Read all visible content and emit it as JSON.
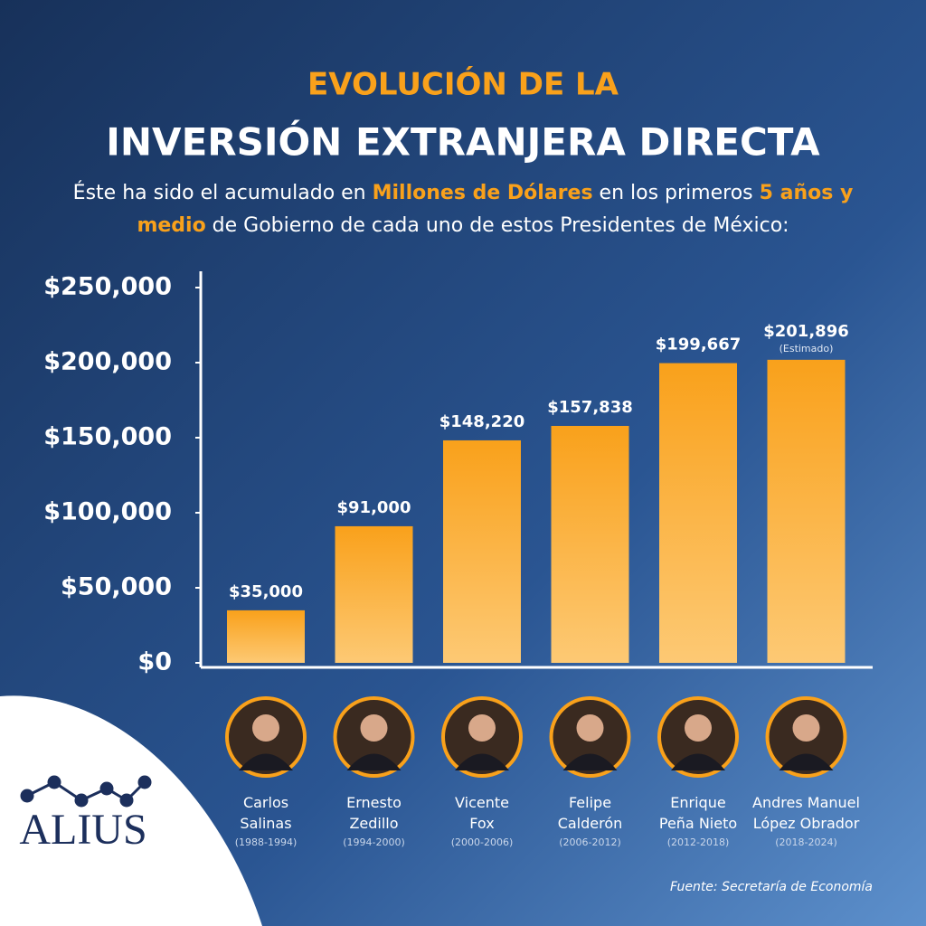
{
  "chart_data": {
    "type": "bar",
    "title": "EVOLUCIÓN DE LA",
    "title_line2": "INVERSIÓN EXTRANJERA DIRECTA",
    "subtitle_parts": [
      "Éste ha sido el acumulado en ",
      "Millones de Dólares",
      " en los primeros ",
      "5 años y medio",
      " de Gobierno de cada uno de estos Presidentes de México:"
    ],
    "categories": [
      "Carlos\nSalinas",
      "Ernesto\nZedillo",
      "Vicente\nFox",
      "Felipe\nCalderón",
      "Enrique\nPeña Nieto",
      "Andres Manuel\nLópez Obrador"
    ],
    "terms": [
      "(1988-1994)",
      "(1994-2000)",
      "(2000-2006)",
      "(2006-2012)",
      "(2012-2018)",
      "(2018-2024)"
    ],
    "values": [
      35000,
      91000,
      148220,
      157838,
      199667,
      201896
    ],
    "value_labels": [
      "$35,000",
      "$91,000",
      "$148,220",
      "$157,838",
      "$199,667",
      "$201,896"
    ],
    "annotation": "(Estimado)",
    "color": "#f9a11b",
    "ylim": [
      0,
      250000
    ],
    "yticks": [
      {
        "value": 0,
        "label": "$0"
      },
      {
        "value": 50000,
        "label": "$50,000"
      },
      {
        "value": 100000,
        "label": "$100,000"
      },
      {
        "value": 150000,
        "label": "$150,000"
      },
      {
        "value": 200000,
        "label": "$200,000"
      },
      {
        "value": 250000,
        "label": "$250,000"
      }
    ],
    "source": "Fuente: Secretaría de Economía",
    "logo": "ALIUS"
  }
}
